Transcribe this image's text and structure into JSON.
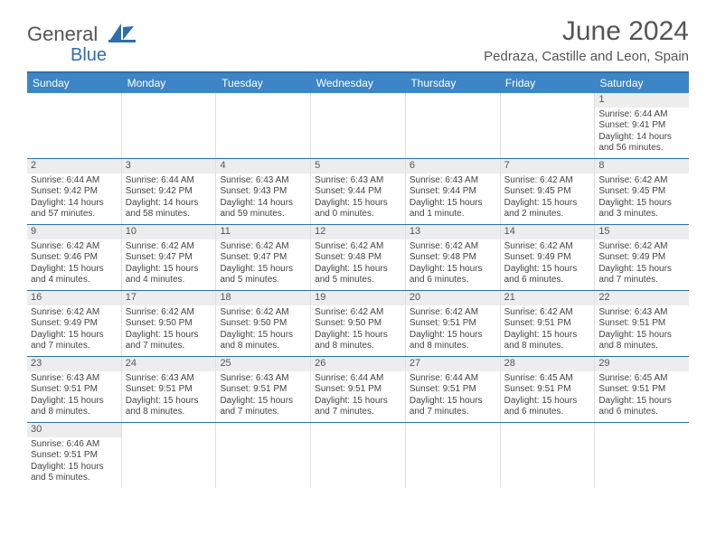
{
  "brand": {
    "name1": "General",
    "name2": "Blue"
  },
  "title": "June 2024",
  "location": "Pedraza, Castille and Leon, Spain",
  "colors": {
    "header_bar": "#3d85c6",
    "border": "#2f6fab",
    "daynum_bg": "#ededed",
    "text": "#444444"
  },
  "weekdays": [
    "Sunday",
    "Monday",
    "Tuesday",
    "Wednesday",
    "Thursday",
    "Friday",
    "Saturday"
  ],
  "weeks": [
    [
      null,
      null,
      null,
      null,
      null,
      null,
      {
        "n": "1",
        "sr": "6:44 AM",
        "ss": "9:41 PM",
        "dl": "14 hours and 56 minutes."
      }
    ],
    [
      {
        "n": "2",
        "sr": "6:44 AM",
        "ss": "9:42 PM",
        "dl": "14 hours and 57 minutes."
      },
      {
        "n": "3",
        "sr": "6:44 AM",
        "ss": "9:42 PM",
        "dl": "14 hours and 58 minutes."
      },
      {
        "n": "4",
        "sr": "6:43 AM",
        "ss": "9:43 PM",
        "dl": "14 hours and 59 minutes."
      },
      {
        "n": "5",
        "sr": "6:43 AM",
        "ss": "9:44 PM",
        "dl": "15 hours and 0 minutes."
      },
      {
        "n": "6",
        "sr": "6:43 AM",
        "ss": "9:44 PM",
        "dl": "15 hours and 1 minute."
      },
      {
        "n": "7",
        "sr": "6:42 AM",
        "ss": "9:45 PM",
        "dl": "15 hours and 2 minutes."
      },
      {
        "n": "8",
        "sr": "6:42 AM",
        "ss": "9:45 PM",
        "dl": "15 hours and 3 minutes."
      }
    ],
    [
      {
        "n": "9",
        "sr": "6:42 AM",
        "ss": "9:46 PM",
        "dl": "15 hours and 4 minutes."
      },
      {
        "n": "10",
        "sr": "6:42 AM",
        "ss": "9:47 PM",
        "dl": "15 hours and 4 minutes."
      },
      {
        "n": "11",
        "sr": "6:42 AM",
        "ss": "9:47 PM",
        "dl": "15 hours and 5 minutes."
      },
      {
        "n": "12",
        "sr": "6:42 AM",
        "ss": "9:48 PM",
        "dl": "15 hours and 5 minutes."
      },
      {
        "n": "13",
        "sr": "6:42 AM",
        "ss": "9:48 PM",
        "dl": "15 hours and 6 minutes."
      },
      {
        "n": "14",
        "sr": "6:42 AM",
        "ss": "9:49 PM",
        "dl": "15 hours and 6 minutes."
      },
      {
        "n": "15",
        "sr": "6:42 AM",
        "ss": "9:49 PM",
        "dl": "15 hours and 7 minutes."
      }
    ],
    [
      {
        "n": "16",
        "sr": "6:42 AM",
        "ss": "9:49 PM",
        "dl": "15 hours and 7 minutes."
      },
      {
        "n": "17",
        "sr": "6:42 AM",
        "ss": "9:50 PM",
        "dl": "15 hours and 7 minutes."
      },
      {
        "n": "18",
        "sr": "6:42 AM",
        "ss": "9:50 PM",
        "dl": "15 hours and 8 minutes."
      },
      {
        "n": "19",
        "sr": "6:42 AM",
        "ss": "9:50 PM",
        "dl": "15 hours and 8 minutes."
      },
      {
        "n": "20",
        "sr": "6:42 AM",
        "ss": "9:51 PM",
        "dl": "15 hours and 8 minutes."
      },
      {
        "n": "21",
        "sr": "6:42 AM",
        "ss": "9:51 PM",
        "dl": "15 hours and 8 minutes."
      },
      {
        "n": "22",
        "sr": "6:43 AM",
        "ss": "9:51 PM",
        "dl": "15 hours and 8 minutes."
      }
    ],
    [
      {
        "n": "23",
        "sr": "6:43 AM",
        "ss": "9:51 PM",
        "dl": "15 hours and 8 minutes."
      },
      {
        "n": "24",
        "sr": "6:43 AM",
        "ss": "9:51 PM",
        "dl": "15 hours and 8 minutes."
      },
      {
        "n": "25",
        "sr": "6:43 AM",
        "ss": "9:51 PM",
        "dl": "15 hours and 7 minutes."
      },
      {
        "n": "26",
        "sr": "6:44 AM",
        "ss": "9:51 PM",
        "dl": "15 hours and 7 minutes."
      },
      {
        "n": "27",
        "sr": "6:44 AM",
        "ss": "9:51 PM",
        "dl": "15 hours and 7 minutes."
      },
      {
        "n": "28",
        "sr": "6:45 AM",
        "ss": "9:51 PM",
        "dl": "15 hours and 6 minutes."
      },
      {
        "n": "29",
        "sr": "6:45 AM",
        "ss": "9:51 PM",
        "dl": "15 hours and 6 minutes."
      }
    ],
    [
      {
        "n": "30",
        "sr": "6:46 AM",
        "ss": "9:51 PM",
        "dl": "15 hours and 5 minutes."
      },
      null,
      null,
      null,
      null,
      null,
      null
    ]
  ],
  "labels": {
    "sunrise": "Sunrise:",
    "sunset": "Sunset:",
    "daylight": "Daylight:"
  }
}
